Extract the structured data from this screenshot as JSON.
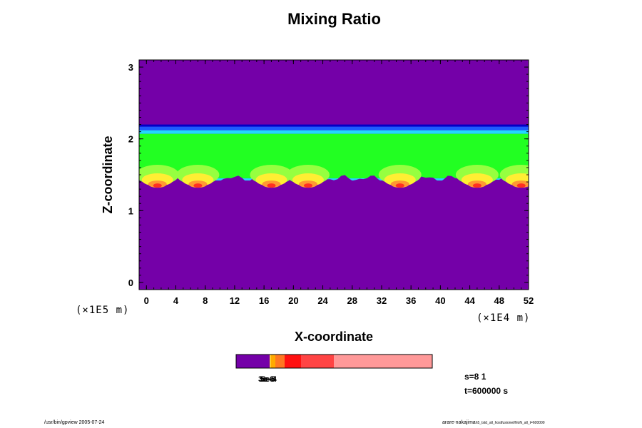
{
  "chart_data": {
    "type": "heatmap",
    "title": "Mixing Ratio",
    "xlabel": "X-coordinate",
    "ylabel": "Z-coordinate",
    "x_unit": "(×1E4 m)",
    "y_unit": "(×1E5 m)",
    "x_ticks": [
      "0",
      "4",
      "8",
      "12",
      "16",
      "20",
      "24",
      "28",
      "32",
      "36",
      "40",
      "44",
      "48",
      "52"
    ],
    "y_ticks": [
      "0",
      "1",
      "2",
      "3"
    ],
    "xlim": [
      -1,
      52
    ],
    "ylim": [
      -0.1,
      3.1
    ],
    "background_value_color": "#7400a8",
    "layer": {
      "z_top": 2.2,
      "z_bottom_typical": 1.45,
      "colors": {
        "dark_blue": "#0000c8",
        "blue": "#1e5aff",
        "cyan": "#22d8ff",
        "green": "#22ff22",
        "light_green": "#96ff40",
        "yellow": "#ffee33",
        "orange": "#ff9933",
        "red": "#ff3020"
      },
      "plumes_x": [
        1.5,
        7,
        17,
        22,
        34.5,
        45,
        51
      ]
    },
    "colorbar": {
      "segments": [
        {
          "color": "#7400a8",
          "width": 47
        },
        {
          "color": "#ffcc33",
          "width": 2
        },
        {
          "color": "#ffaa00",
          "width": 6
        },
        {
          "color": "#ff7722",
          "width": 13
        },
        {
          "color": "#ff1111",
          "width": 23
        },
        {
          "color": "#ff4444",
          "width": 46
        },
        {
          "color": "#ff9999",
          "width": 138
        }
      ],
      "labels": [
        "3e-6",
        "5e-5",
        "5e-4"
      ]
    },
    "info": {
      "s": "s=8 1",
      "t": "t=600000 s"
    },
    "footer_left": "/usr/bin/gpview 2005-07-24",
    "footer_right_main": "arare-nakajima",
    "footer_right_small": "h5_tstd_all_hostfusionet/NoN_all_t=600000"
  }
}
